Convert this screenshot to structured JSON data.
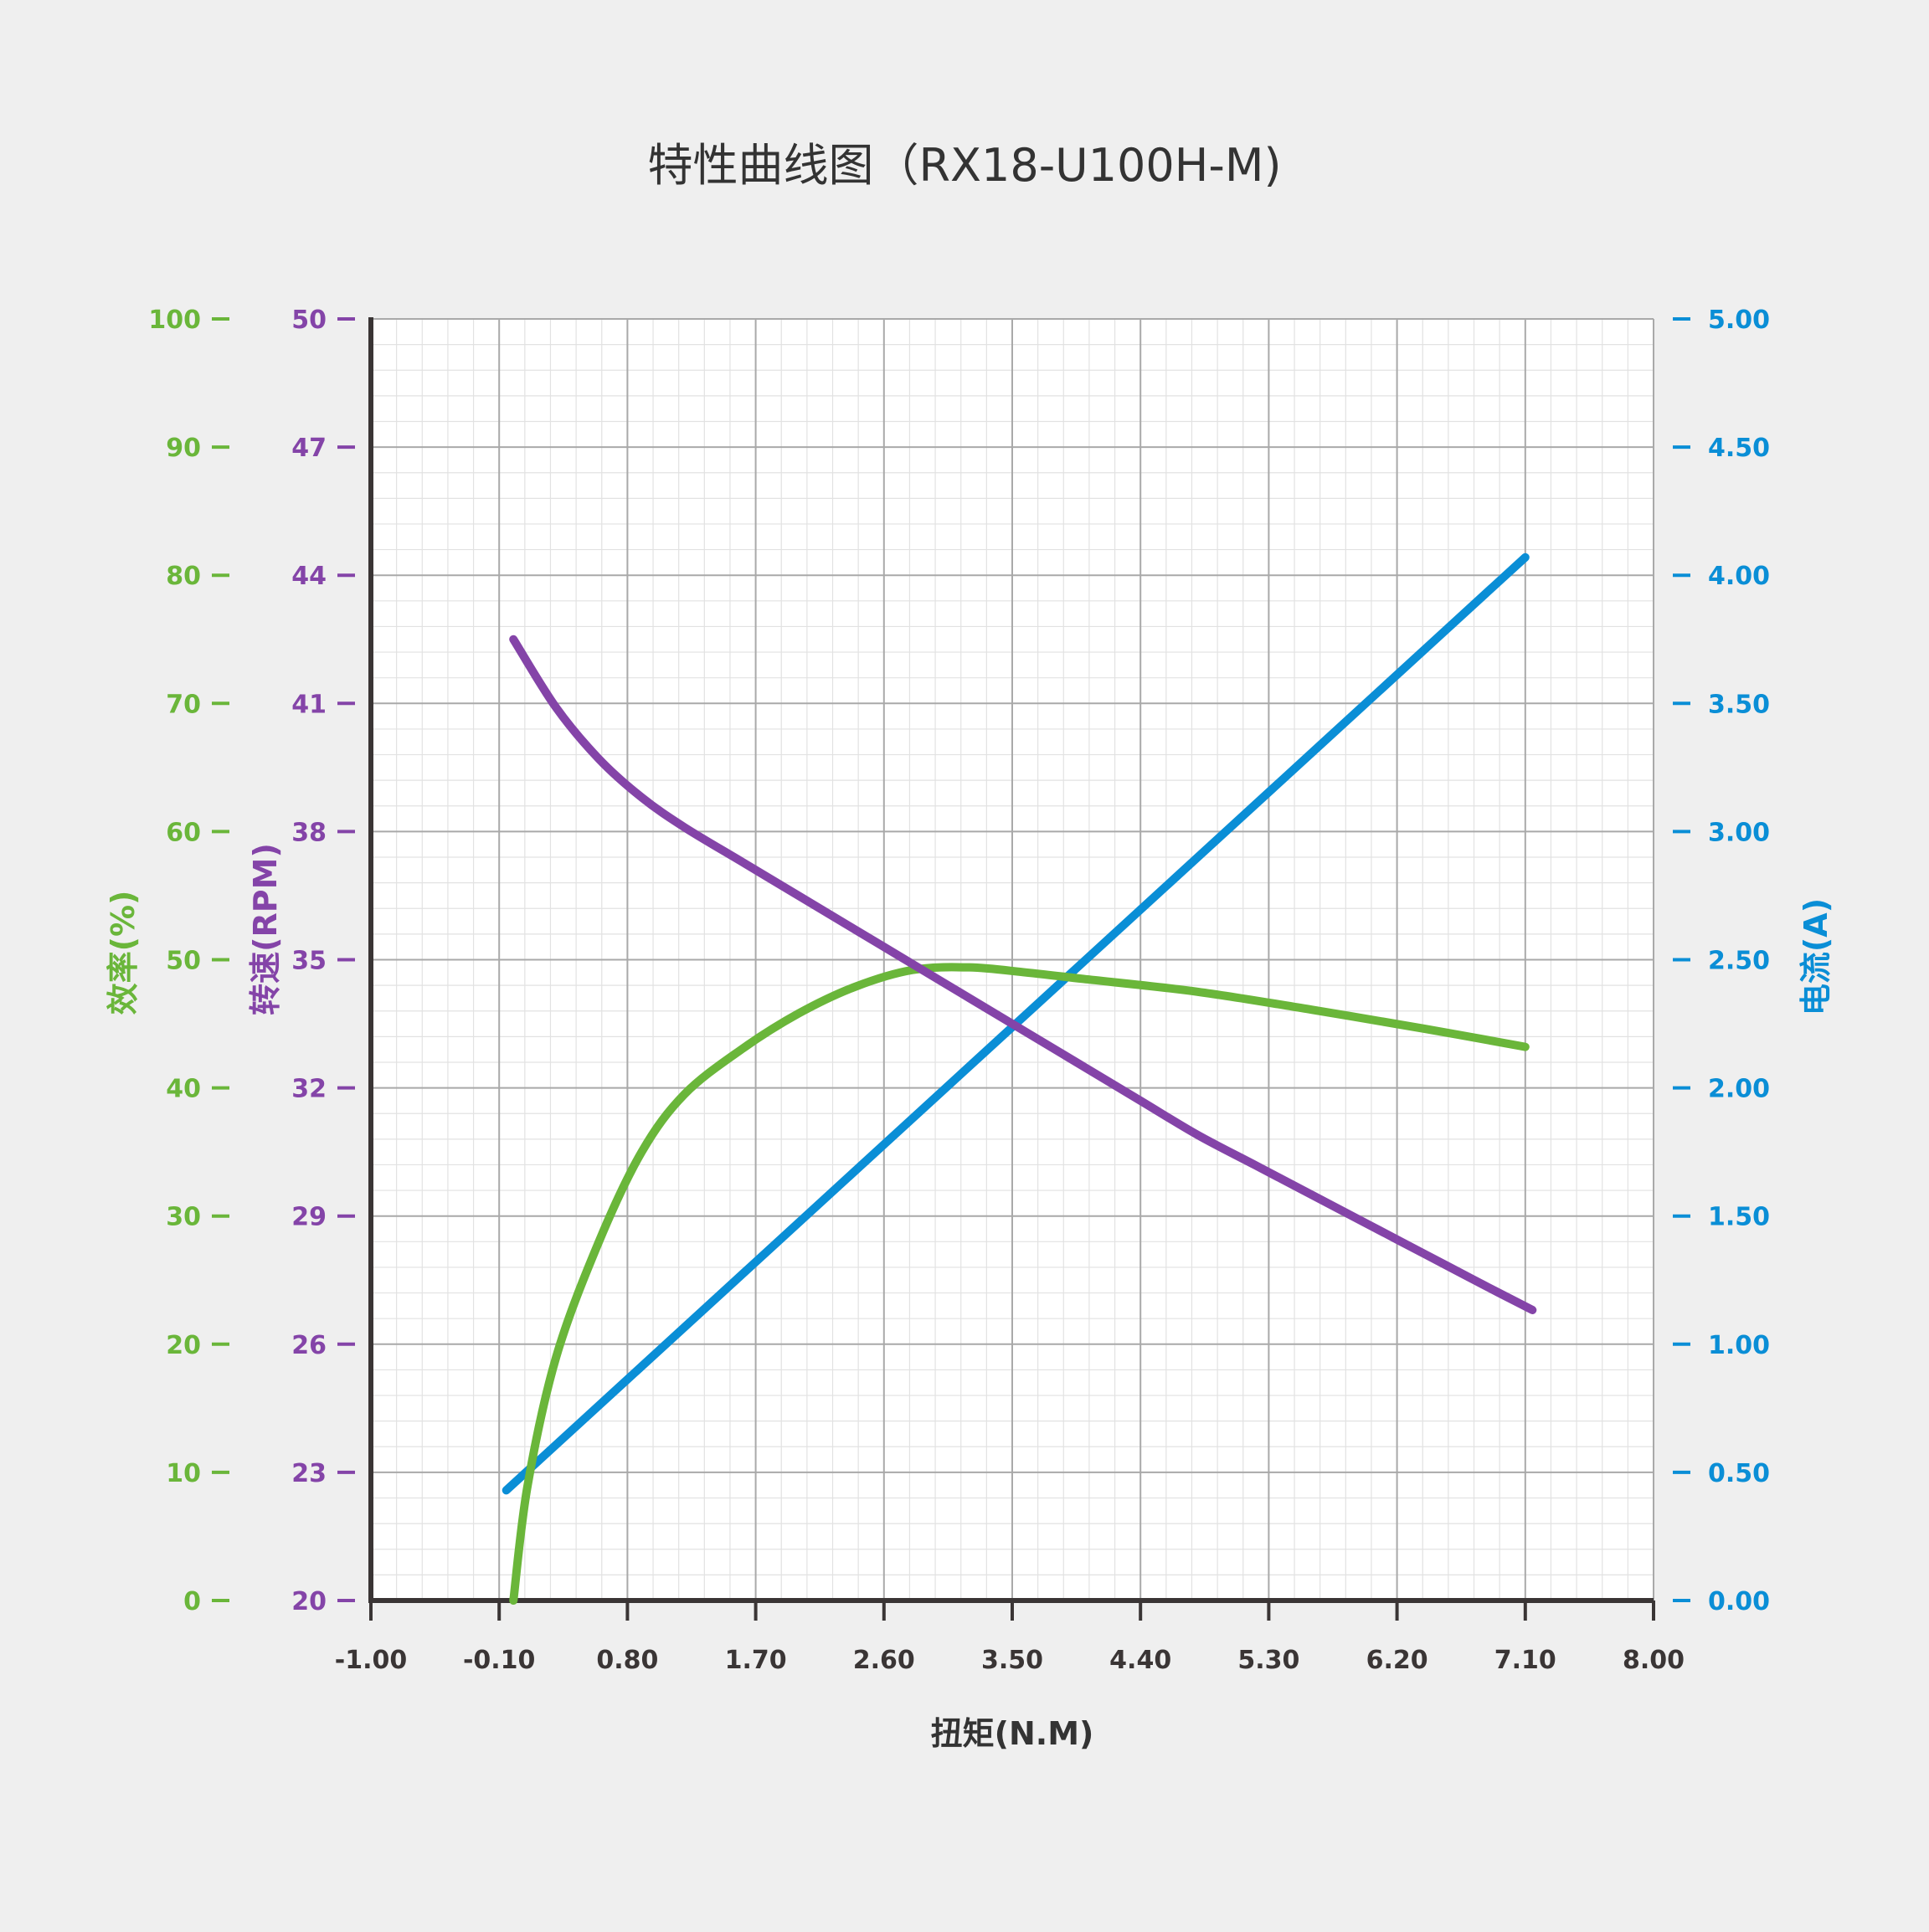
{
  "chart_data": {
    "type": "line",
    "title": "特性曲线图（RX18-U100H-M)",
    "xlabel": "扭矩(N.M)",
    "x_ticks": [
      "-1.00",
      "-0.10",
      "0.80",
      "1.70",
      "2.60",
      "3.50",
      "4.40",
      "5.30",
      "6.20",
      "7.10",
      "8.00"
    ],
    "xlim": [
      -1.0,
      8.0
    ],
    "grid": true,
    "axes": {
      "efficiency": {
        "label": "效率(%)",
        "color": "#6ab63a",
        "side": "left-outer",
        "range": [
          0,
          100
        ],
        "ticks": [
          "100",
          "90",
          "80",
          "70",
          "60",
          "50",
          "40",
          "30",
          "20",
          "10",
          "0"
        ]
      },
      "speed": {
        "label": "转速(RPM)",
        "color": "#8444a8",
        "side": "left-inner",
        "range": [
          20,
          50
        ],
        "ticks": [
          "50",
          "47",
          "44",
          "41",
          "38",
          "35",
          "32",
          "29",
          "26",
          "23",
          "20"
        ]
      },
      "current": {
        "label": "电流(A)",
        "color": "#0a8ed6",
        "side": "right",
        "range": [
          0,
          5
        ],
        "ticks": [
          "5.00",
          "4.50",
          "4.00",
          "3.50",
          "3.00",
          "2.50",
          "2.00",
          "1.50",
          "1.00",
          "0.50",
          "0.00"
        ]
      }
    },
    "series": [
      {
        "axis": "efficiency",
        "color": "#6ab63a",
        "x": [
          0.0,
          0.1,
          0.3,
          0.6,
          0.9,
          1.2,
          1.6,
          2.0,
          2.4,
          2.8,
          3.2,
          3.6,
          4.0,
          4.8,
          5.6,
          6.4,
          7.1
        ],
        "y": [
          0,
          9,
          19,
          28,
          35,
          39.5,
          43,
          45.8,
          47.9,
          49.2,
          49.4,
          49.0,
          48.5,
          47.5,
          46.1,
          44.6,
          43.2
        ]
      },
      {
        "axis": "speed",
        "color": "#8444a8",
        "x": [
          0.0,
          0.3,
          0.6,
          0.9,
          1.2,
          1.6,
          2.0,
          2.4,
          2.8,
          3.2,
          3.6,
          4.0,
          4.4,
          4.8,
          5.2,
          5.6,
          6.0,
          6.4,
          6.8,
          7.15
        ],
        "y": [
          42.5,
          40.9,
          39.7,
          38.8,
          38.1,
          37.3,
          36.5,
          35.7,
          34.9,
          34.1,
          33.3,
          32.5,
          31.7,
          30.9,
          30.2,
          29.5,
          28.8,
          28.1,
          27.4,
          26.8
        ]
      },
      {
        "axis": "current",
        "color": "#0a8ed6",
        "x": [
          -0.05,
          7.1
        ],
        "y": [
          0.43,
          4.07
        ]
      }
    ]
  }
}
